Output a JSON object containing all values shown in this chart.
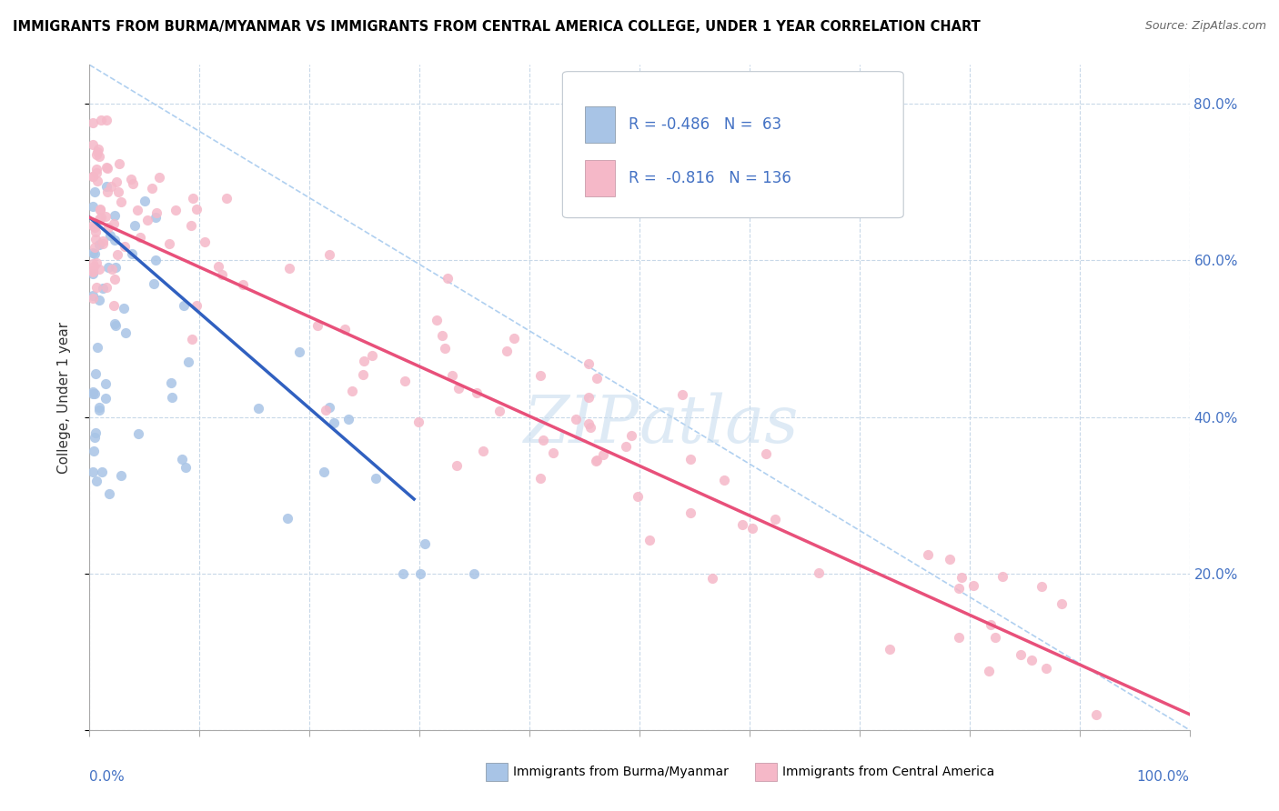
{
  "title": "IMMIGRANTS FROM BURMA/MYANMAR VS IMMIGRANTS FROM CENTRAL AMERICA COLLEGE, UNDER 1 YEAR CORRELATION CHART",
  "source": "Source: ZipAtlas.com",
  "ylabel": "College, Under 1 year",
  "legend_r1": "-0.486",
  "legend_n1": "63",
  "legend_r2": "-0.816",
  "legend_n2": "136",
  "color_burma_fill": "#a8c4e6",
  "color_central_fill": "#f5b8c8",
  "color_burma_line": "#3060c0",
  "color_central_line": "#e8507a",
  "color_r_text": "#4472c4",
  "watermark_color": "#d8e8f0",
  "diag_line_color": "#b0d0f0",
  "burma_line_x0": 0.0,
  "burma_line_y0": 0.655,
  "burma_line_x1": 0.295,
  "burma_line_y1": 0.295,
  "central_line_x0": 0.0,
  "central_line_y0": 0.655,
  "central_line_x1": 1.0,
  "central_line_y1": 0.02,
  "xlim": [
    0.0,
    1.0
  ],
  "ylim": [
    0.0,
    0.85
  ],
  "ytick_vals": [
    0.0,
    0.2,
    0.4,
    0.6,
    0.8
  ],
  "ytick_labels": [
    "",
    "20.0%",
    "40.0%",
    "60.0%",
    "80.0%"
  ]
}
